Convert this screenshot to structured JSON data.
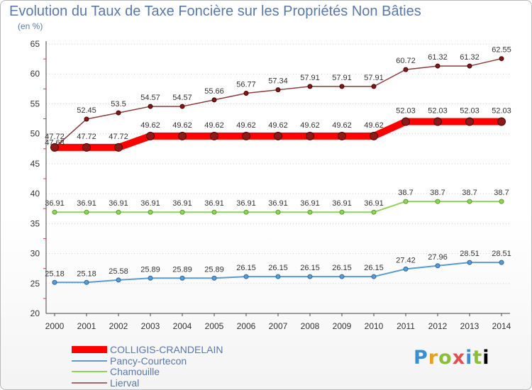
{
  "chart_data": {
    "type": "line",
    "title": "Evolution du Taux de Taxe Foncière sur les Propriétés Non Bâties",
    "ylabel": "(en %)",
    "xlabel": "",
    "ylim": [
      20,
      65
    ],
    "yticks": [
      20,
      25,
      30,
      35,
      40,
      45,
      50,
      55,
      60,
      65
    ],
    "categories": [
      "2000",
      "2001",
      "2002",
      "2003",
      "2004",
      "2005",
      "2006",
      "2007",
      "2008",
      "2009",
      "2010",
      "2011",
      "2012",
      "2013",
      "2014"
    ],
    "series": [
      {
        "name": "COLLIGIS-CRANDELAIN",
        "color": "#ff0000",
        "values": [
          47.72,
          47.72,
          47.72,
          49.62,
          49.62,
          49.62,
          49.62,
          49.62,
          49.62,
          49.62,
          49.62,
          52.03,
          52.03,
          52.03,
          52.03
        ],
        "labels": [
          "47.72",
          "47.72",
          "47.72",
          "49.62",
          "49.62",
          "49.62",
          "49.62",
          "49.62",
          "49.62",
          "49.62",
          "49.62",
          "52.03",
          "52.03",
          "52.03",
          "52.03"
        ]
      },
      {
        "name": "Pancy-Courtecon",
        "color": "#5b9bd0",
        "values": [
          25.18,
          25.18,
          25.58,
          25.89,
          25.89,
          25.89,
          26.15,
          26.15,
          26.15,
          26.15,
          26.15,
          27.42,
          27.96,
          28.51,
          28.51
        ],
        "labels": [
          "25.18",
          "25.18",
          "25.58",
          "25.89",
          "25.89",
          "25.89",
          "26.15",
          "26.15",
          "26.15",
          "26.15",
          "26.15",
          "27.42",
          "27.96",
          "28.51",
          "28.51"
        ]
      },
      {
        "name": "Chamouille",
        "color": "#8ed35a",
        "values": [
          36.91,
          36.91,
          36.91,
          36.91,
          36.91,
          36.91,
          36.91,
          36.91,
          36.91,
          36.91,
          36.91,
          38.7,
          38.7,
          38.7,
          38.7
        ],
        "labels": [
          "36.91",
          "36.91",
          "36.91",
          "36.91",
          "36.91",
          "36.91",
          "36.91",
          "36.91",
          "36.91",
          "36.91",
          "36.91",
          "38.7",
          "38.7",
          "38.7",
          "38.7"
        ]
      },
      {
        "name": "Lierval",
        "color": "#8b3a3a",
        "values": [
          47.68,
          52.45,
          53.5,
          54.57,
          54.57,
          55.66,
          56.77,
          57.34,
          57.91,
          57.91,
          57.91,
          60.72,
          61.32,
          61.32,
          62.55
        ],
        "labels": [
          "47.68",
          "52.45",
          "53.5",
          "54.57",
          "54.57",
          "55.66",
          "56.77",
          "57.34",
          "57.91",
          "57.91",
          "57.91",
          "60.72",
          "61.32",
          "61.32",
          "62.55"
        ]
      }
    ]
  },
  "logo": {
    "letters": [
      "P",
      "r",
      "o",
      "x",
      "i",
      "t",
      "i"
    ]
  }
}
